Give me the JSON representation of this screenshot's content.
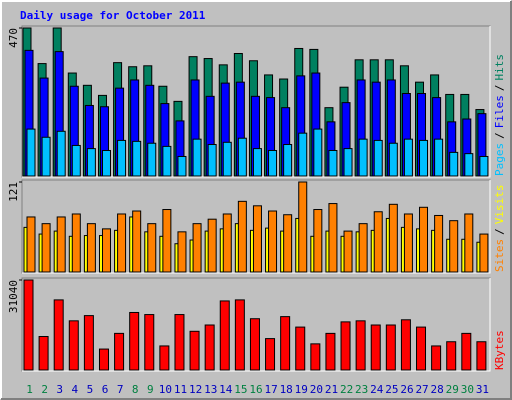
{
  "chart_data": [
    {
      "type": "bar",
      "title": "Daily usage for October 2011",
      "ylim": [
        0,
        470
      ],
      "yticks": [
        470
      ],
      "legend_separator": "/",
      "series": [
        {
          "name": "Pages",
          "color": "#00c0ff",
          "values": [
            149,
            123,
            142,
            97,
            87,
            81,
            113,
            110,
            104,
            94,
            62,
            117,
            100,
            107,
            120,
            87,
            81,
            100,
            136,
            149,
            81,
            87,
            117,
            113,
            104,
            117,
            113,
            117,
            75,
            71,
            62
          ]
        },
        {
          "name": "Files",
          "color": "#0000ff",
          "values": [
            399,
            311,
            395,
            285,
            224,
            220,
            279,
            305,
            288,
            230,
            175,
            305,
            253,
            295,
            298,
            253,
            249,
            217,
            318,
            327,
            172,
            233,
            305,
            298,
            305,
            262,
            262,
            249,
            172,
            181,
            198
          ]
        },
        {
          "name": "Hits",
          "color": "#008060",
          "values": [
            470,
            357,
            470,
            327,
            288,
            256,
            360,
            347,
            350,
            285,
            237,
            379,
            373,
            353,
            389,
            366,
            321,
            308,
            405,
            402,
            217,
            282,
            369,
            369,
            369,
            350,
            298,
            321,
            259,
            259,
            211
          ]
        }
      ]
    },
    {
      "type": "bar",
      "ylim": [
        0,
        121
      ],
      "yticks": [
        121
      ],
      "legend_separator": "/",
      "series": [
        {
          "name": "Sites",
          "color": "#ff8000",
          "values": [
            74,
            65,
            74,
            78,
            65,
            58,
            78,
            82,
            65,
            84,
            54,
            65,
            71,
            78,
            95,
            89,
            82,
            77,
            121,
            84,
            92,
            55,
            65,
            81,
            91,
            78,
            87,
            76,
            69,
            78,
            51
          ]
        },
        {
          "name": "Visits",
          "color": "#ffff00",
          "values": [
            60,
            51,
            55,
            48,
            49,
            49,
            56,
            74,
            54,
            48,
            38,
            43,
            55,
            58,
            65,
            56,
            59,
            55,
            72,
            48,
            55,
            48,
            54,
            56,
            72,
            60,
            58,
            56,
            44,
            44,
            40
          ]
        }
      ]
    },
    {
      "type": "bar",
      "ylim": [
        0,
        31040
      ],
      "yticks": [
        31040
      ],
      "categories": [
        "1",
        "2",
        "3",
        "4",
        "5",
        "6",
        "7",
        "8",
        "9",
        "10",
        "11",
        "12",
        "13",
        "14",
        "15",
        "16",
        "17",
        "18",
        "19",
        "20",
        "21",
        "22",
        "23",
        "24",
        "25",
        "26",
        "27",
        "28",
        "29",
        "30",
        "31"
      ],
      "category_colors": [
        "#008040",
        "#008040",
        "#0000c0",
        "#0000c0",
        "#0000c0",
        "#0000c0",
        "#0000c0",
        "#008040",
        "#008040",
        "#0000c0",
        "#0000c0",
        "#0000c0",
        "#0000c0",
        "#0000c0",
        "#008040",
        "#008040",
        "#0000c0",
        "#0000c0",
        "#0000c0",
        "#0000c0",
        "#0000c0",
        "#008040",
        "#008040",
        "#0000c0",
        "#0000c0",
        "#0000c0",
        "#0000c0",
        "#0000c0",
        "#008040",
        "#008040",
        "#0000c0"
      ],
      "series": [
        {
          "name": "KBytes",
          "color": "#ff0000",
          "values": [
            31040,
            11550,
            24180,
            16960,
            18760,
            7220,
            12630,
            19840,
            19120,
            8300,
            19120,
            13350,
            15520,
            23820,
            24180,
            17690,
            10830,
            18410,
            14800,
            9020,
            12630,
            16600,
            16960,
            15520,
            15520,
            17320,
            14800,
            8300,
            9750,
            12630,
            9750
          ]
        }
      ]
    }
  ]
}
